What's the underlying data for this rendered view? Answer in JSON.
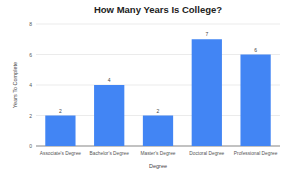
{
  "chart_data": {
    "type": "bar",
    "title": "How Many Years Is College?",
    "x_label": "Degree",
    "y_label": "Years To Complete",
    "categories": [
      "Associate's Degree",
      "Bachelor's Degree",
      "Master's Degree",
      "Doctoral Degree",
      "Professional Degree"
    ],
    "values": [
      2,
      4,
      2,
      7,
      6
    ],
    "color": "#4285f4",
    "ylim": [
      0,
      8
    ],
    "yticks": [
      0,
      2,
      4,
      6,
      8
    ],
    "grid": true,
    "data_labels": true
  }
}
